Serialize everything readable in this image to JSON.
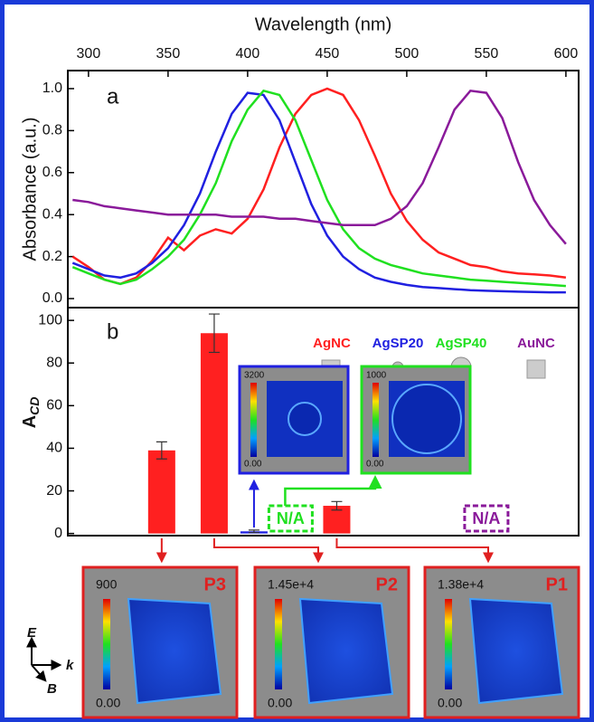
{
  "chart_data": [
    {
      "type": "line",
      "panel": "a",
      "xlabel": "Wavelength (nm)",
      "ylabel": "Absorbance (a.u.)",
      "x": [
        290,
        300,
        310,
        320,
        330,
        340,
        350,
        360,
        370,
        380,
        390,
        400,
        410,
        420,
        430,
        440,
        450,
        460,
        470,
        480,
        490,
        500,
        510,
        520,
        530,
        540,
        550,
        560,
        570,
        580,
        590,
        600
      ],
      "series": [
        {
          "name": "AgNC",
          "color": "#ff2020",
          "values": [
            0.2,
            0.15,
            0.09,
            0.07,
            0.1,
            0.18,
            0.29,
            0.23,
            0.3,
            0.33,
            0.31,
            0.38,
            0.52,
            0.72,
            0.88,
            0.97,
            1.0,
            0.97,
            0.85,
            0.68,
            0.5,
            0.37,
            0.28,
            0.22,
            0.19,
            0.16,
            0.15,
            0.13,
            0.12,
            0.115,
            0.11,
            0.1
          ]
        },
        {
          "name": "AgSP20",
          "color": "#2020e0",
          "values": [
            0.17,
            0.14,
            0.11,
            0.1,
            0.12,
            0.17,
            0.24,
            0.35,
            0.5,
            0.7,
            0.88,
            0.98,
            0.97,
            0.85,
            0.65,
            0.45,
            0.3,
            0.2,
            0.14,
            0.1,
            0.08,
            0.065,
            0.055,
            0.05,
            0.045,
            0.04,
            0.037,
            0.035,
            0.033,
            0.031,
            0.03,
            0.03
          ]
        },
        {
          "name": "AgSP40",
          "color": "#20e020",
          "values": [
            0.15,
            0.12,
            0.09,
            0.07,
            0.09,
            0.14,
            0.2,
            0.28,
            0.4,
            0.55,
            0.75,
            0.9,
            0.99,
            0.97,
            0.85,
            0.66,
            0.47,
            0.33,
            0.24,
            0.19,
            0.16,
            0.14,
            0.12,
            0.11,
            0.1,
            0.09,
            0.085,
            0.08,
            0.075,
            0.07,
            0.065,
            0.06
          ]
        },
        {
          "name": "AuNC",
          "color": "#8a1a9a",
          "values": [
            0.47,
            0.46,
            0.44,
            0.43,
            0.42,
            0.41,
            0.4,
            0.4,
            0.4,
            0.4,
            0.39,
            0.39,
            0.39,
            0.38,
            0.38,
            0.37,
            0.36,
            0.35,
            0.35,
            0.35,
            0.38,
            0.44,
            0.55,
            0.72,
            0.9,
            0.99,
            0.98,
            0.86,
            0.65,
            0.47,
            0.35,
            0.26
          ]
        }
      ],
      "xlim": [
        287,
        608
      ],
      "xticks": [
        300,
        350,
        400,
        450,
        500,
        550,
        600
      ],
      "ylim": [
        -0.043,
        1.086
      ],
      "yticks": [
        {
          "value": 0,
          "label": "0.0"
        },
        {
          "value": 0.2,
          "label": "0.2"
        },
        {
          "value": 0.4,
          "label": "0.4"
        },
        {
          "value": 0.6,
          "label": "0.6"
        },
        {
          "value": 0.8,
          "label": "0.8"
        },
        {
          "value": 1,
          "label": "1.0"
        }
      ]
    },
    {
      "type": "bar",
      "panel": "b",
      "ylabel": "A",
      "ylabel_sub": "CD",
      "x": [
        346,
        379,
        404,
        456
      ],
      "values": [
        39,
        94,
        1,
        13
      ],
      "errors": [
        4,
        9,
        0.6,
        2
      ],
      "colors": [
        "#ff2020",
        "#ff2020",
        "#2020e0",
        "#ff2020"
      ],
      "annotations": [
        {
          "text": "N/A",
          "x": 427,
          "color": "#20e020"
        },
        {
          "text": "N/A",
          "x": 550,
          "color": "#8a1a9a"
        }
      ],
      "ylim": [
        -1,
        106
      ],
      "yticks": [
        0,
        20,
        40,
        60,
        80,
        100
      ]
    }
  ],
  "insets": [
    {
      "max": "3200",
      "min": "0.00",
      "color": "#2020e0"
    },
    {
      "max": "1000",
      "min": "0.00",
      "color": "#20e020"
    }
  ],
  "field_maps": [
    {
      "label": "P3",
      "max": "900",
      "min": "0.00"
    },
    {
      "label": "P2",
      "max": "1.45e+4",
      "min": "0.00"
    },
    {
      "label": "P1",
      "max": "1.38e+4",
      "min": "0.00"
    }
  ],
  "axes_labels": [
    "E",
    "k",
    "B"
  ]
}
